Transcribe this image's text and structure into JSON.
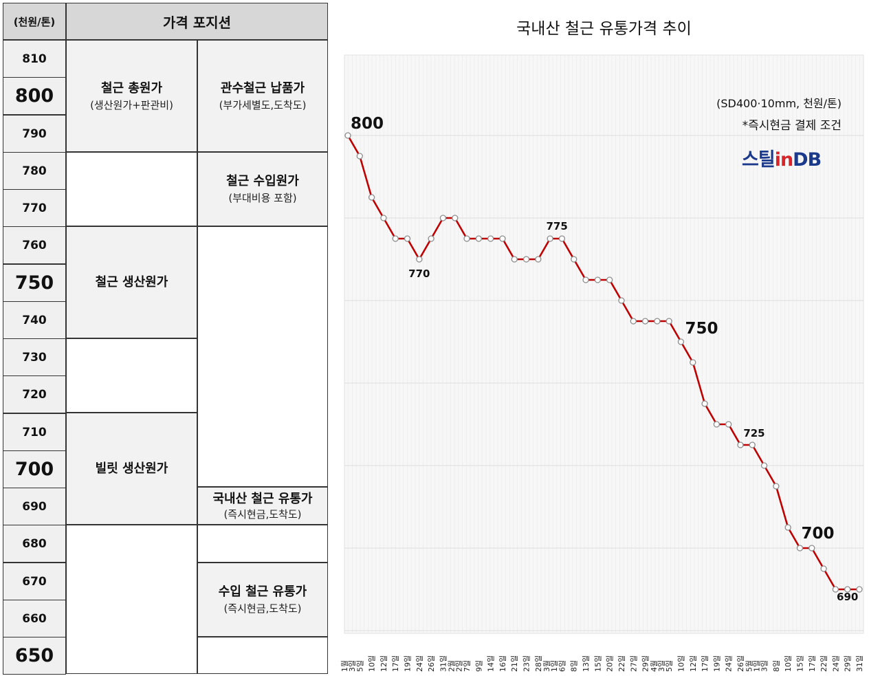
{
  "table": {
    "unit_header": "(천원/톤)",
    "position_header": "가격 포지션",
    "ticks": [
      "810",
      "800",
      "790",
      "780",
      "770",
      "760",
      "750",
      "740",
      "730",
      "720",
      "710",
      "700",
      "690",
      "680",
      "670",
      "660",
      "650"
    ],
    "major_ticks": [
      "800",
      "750",
      "700",
      "650"
    ],
    "left_column": [
      {
        "title": "철근 총원가",
        "sub": "(생산원가+판관비)"
      },
      {
        "title": "철근 생산원가",
        "sub": ""
      },
      {
        "title": "빌릿 생산원가",
        "sub": ""
      }
    ],
    "right_column": [
      {
        "title": "관수철근 납품가",
        "sub": "(부가세별도,도착도)"
      },
      {
        "title": "철근 수입원가",
        "sub": "(부대비용 포함)"
      },
      {
        "title": "국내산 철근 유통가",
        "sub": "(즉시현금,도착도)"
      },
      {
        "title": "수입 철근 유통가",
        "sub": "(즉시현금,도착도)"
      }
    ]
  },
  "chart": {
    "title": "국내산 철근 유통가격 추이",
    "spec_note": "(SD400·10mm, 천원/톤)",
    "payment_note": "*즉시현금 결제 조건",
    "logo": {
      "part1": "스틸",
      "part2": "in",
      "part3": "DB"
    },
    "colors": {
      "line": "#c00000",
      "marker_fill": "#ffffff",
      "marker_stroke": "#8c8c8c",
      "grid": "#dedede",
      "plot_bg": "#f7f7f7"
    }
  },
  "chart_data": {
    "type": "line",
    "title": "국내산 철근 유통가격 추이",
    "xlabel": "",
    "ylabel": "",
    "ylim": [
      650,
      810
    ],
    "grid": true,
    "x": [
      "1월 3일",
      "5일",
      "10일",
      "12일",
      "17일",
      "19일",
      "24일",
      "26일",
      "31일",
      "2월 2일",
      "7일",
      "9일",
      "14일",
      "16일",
      "21일",
      "23일",
      "28일",
      "3월 1일",
      "6일",
      "8일",
      "13일",
      "15일",
      "20일",
      "22일",
      "27일",
      "29일",
      "4월 3일",
      "5일",
      "10일",
      "12일",
      "17일",
      "19일",
      "24일",
      "26일",
      "5월 1일",
      "3일",
      "8일",
      "10일",
      "15일",
      "17일",
      "22일",
      "24일",
      "29일",
      "31일"
    ],
    "x_tick_lines": [
      [
        "1월",
        "3일"
      ],
      [
        "5일"
      ],
      [
        "10일"
      ],
      [
        "12일"
      ],
      [
        "17일"
      ],
      [
        "19일"
      ],
      [
        "24일"
      ],
      [
        "26일"
      ],
      [
        "31일"
      ],
      [
        "2월",
        "2일"
      ],
      [
        "7일"
      ],
      [
        "9일"
      ],
      [
        "14일"
      ],
      [
        "16일"
      ],
      [
        "21일"
      ],
      [
        "23일"
      ],
      [
        "28일"
      ],
      [
        "3월",
        "1일"
      ],
      [
        "6일"
      ],
      [
        "8일"
      ],
      [
        "13일"
      ],
      [
        "15일"
      ],
      [
        "20일"
      ],
      [
        "22일"
      ],
      [
        "27일"
      ],
      [
        "29일"
      ],
      [
        "4월",
        "3일"
      ],
      [
        "5일"
      ],
      [
        "10일"
      ],
      [
        "12일"
      ],
      [
        "17일"
      ],
      [
        "19일"
      ],
      [
        "24일"
      ],
      [
        "26일"
      ],
      [
        "5월",
        "1일"
      ],
      [
        "3일"
      ],
      [
        "8일"
      ],
      [
        "10일"
      ],
      [
        "15일"
      ],
      [
        "17일"
      ],
      [
        "22일"
      ],
      [
        "24일"
      ],
      [
        "29일"
      ],
      [
        "31일"
      ]
    ],
    "series": [
      {
        "values": [
          800,
          795,
          785,
          780,
          775,
          775,
          770,
          775,
          780,
          780,
          775,
          775,
          775,
          775,
          770,
          770,
          770,
          775,
          775,
          770,
          765,
          765,
          765,
          760,
          755,
          755,
          755,
          755,
          750,
          745,
          735,
          730,
          730,
          725,
          725,
          720,
          715,
          705,
          700,
          700,
          695,
          690,
          690,
          690
        ]
      }
    ],
    "annotations": [
      {
        "index": 0,
        "text": "800",
        "size": "large"
      },
      {
        "index": 6,
        "text": "770",
        "size": "small"
      },
      {
        "index": 17,
        "text": "775",
        "size": "small"
      },
      {
        "index": 28,
        "text": "750",
        "size": "large"
      },
      {
        "index": 33,
        "text": "725",
        "size": "small"
      },
      {
        "index": 38,
        "text": "700",
        "size": "large"
      },
      {
        "index": 42,
        "text": "690",
        "size": "small"
      }
    ]
  }
}
